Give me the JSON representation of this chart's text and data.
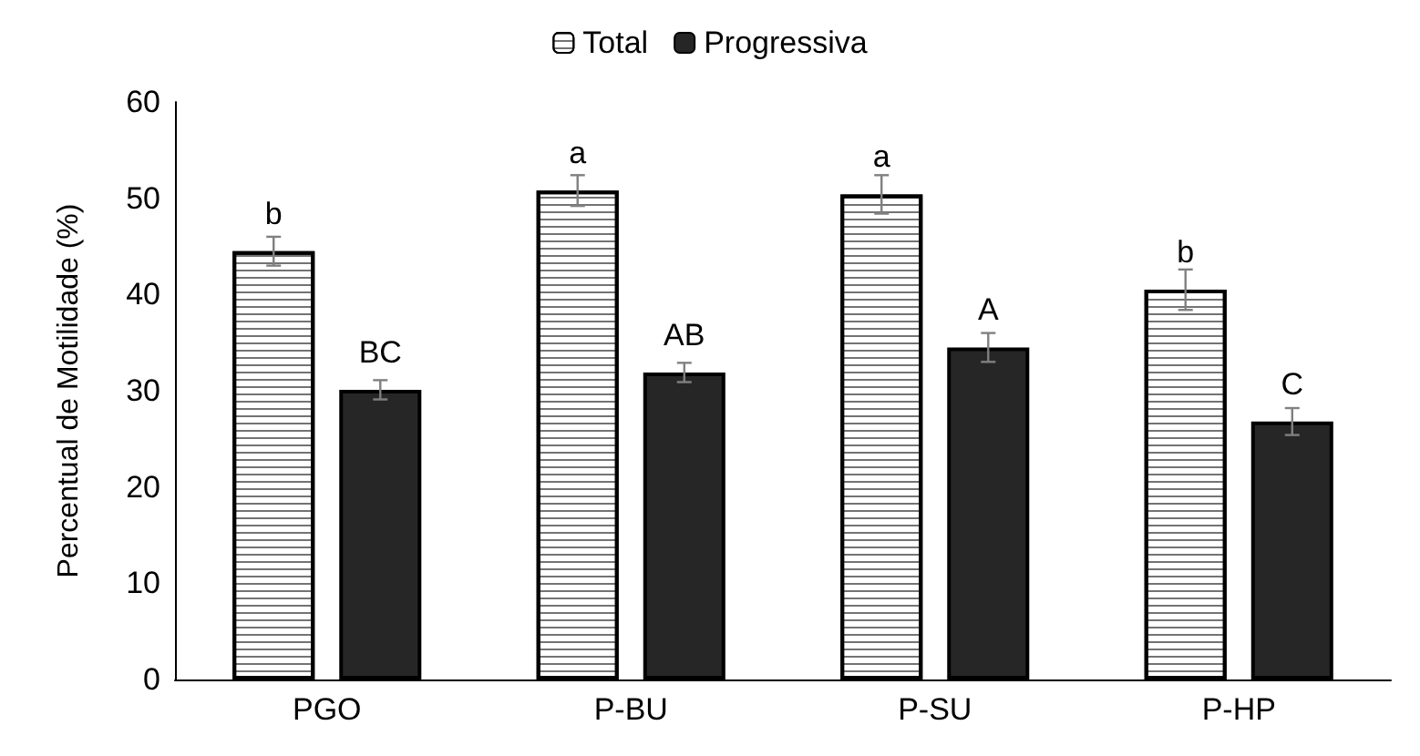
{
  "chart_data": {
    "type": "bar",
    "ylabel": "Percentual de Motilidade (%)",
    "categories": [
      "PGO",
      "P-BU",
      "P-SU",
      "P-HP"
    ],
    "series": [
      {
        "name": "Total",
        "color": "#ffffff",
        "values": [
          44.5,
          50.8,
          50.4,
          40.5
        ],
        "errors": [
          1.5,
          1.6,
          2,
          2.1
        ],
        "value_labels": [
          "b",
          "a",
          "a",
          "b"
        ]
      },
      {
        "name": "Progressiva",
        "color": "#262626",
        "values": [
          30.1,
          31.9,
          34.5,
          26.8
        ],
        "errors": [
          1,
          1,
          1.5,
          1.4
        ],
        "value_labels": [
          "BC",
          "AB",
          "A",
          "C"
        ]
      }
    ],
    "ylim": [
      0,
      60
    ],
    "yticks": [
      0,
      10,
      20,
      30,
      40,
      50,
      60
    ],
    "grid": false,
    "legend": "top"
  }
}
